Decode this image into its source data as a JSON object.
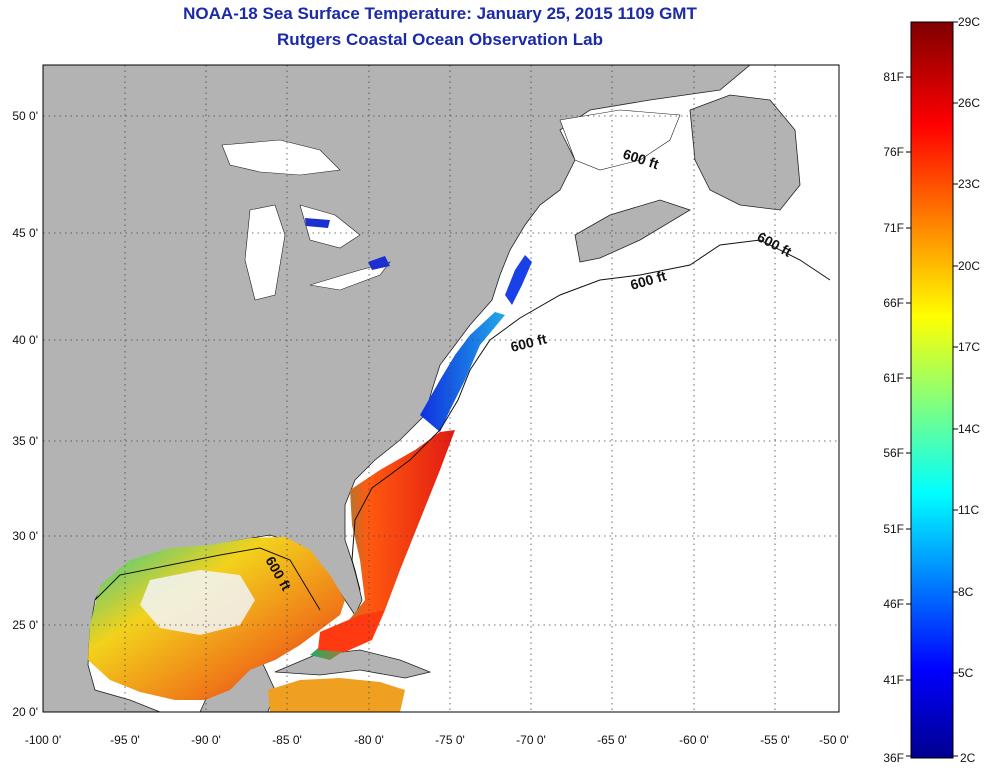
{
  "title": {
    "line1": "NOAA-18 Sea Surface Temperature:  January 25, 2015 1109 GMT",
    "line2": "Rutgers Coastal Ocean Observation Lab"
  },
  "axes": {
    "longitude_labels": [
      "-100 0'",
      "-95 0'",
      "-90 0'",
      "-85 0'",
      "-80 0'",
      "-75 0'",
      "-70 0'",
      "-65 0'",
      "-60 0'",
      "-55 0'",
      "-50 0'"
    ],
    "latitude_labels": [
      "50 0'",
      "45 0'",
      "40 0'",
      "35 0'",
      "30 0'",
      "25 0'",
      "20 0'"
    ],
    "lon_range": [
      -100,
      -50
    ],
    "lat_range": [
      20,
      52
    ]
  },
  "isobath_labels": [
    "600 ft",
    "600 ft",
    "600 ft",
    "600 ft",
    "600 ft"
  ],
  "colorbar": {
    "celsius_labels": [
      "29C",
      "26C",
      "23C",
      "20C",
      "17C",
      "14C",
      "11C",
      "8C",
      "5C",
      "2C"
    ],
    "fahrenheit_labels": [
      "81F",
      "76F",
      "71F",
      "66F",
      "61F",
      "56F",
      "51F",
      "46F",
      "41F",
      "36F"
    ]
  },
  "colors": {
    "land": "#b3b3b3",
    "ocean_nodata": "#ffffff",
    "title": "#1a2aa8"
  }
}
